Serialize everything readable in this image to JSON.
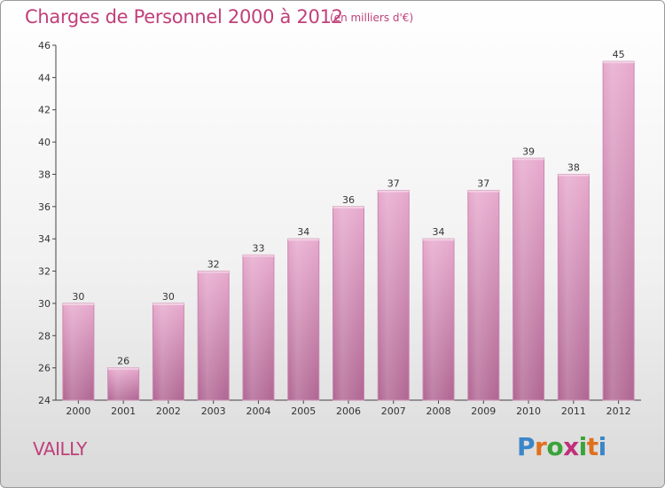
{
  "title": "Charges de Personnel 2000 à 2012",
  "subtitle": "(en milliers d'€)",
  "commune": "VAILLY",
  "logo": {
    "letters": [
      "P",
      "r",
      "o",
      "x",
      "i",
      "t",
      "i"
    ],
    "colors": [
      "#3a86c8",
      "#e0701e",
      "#3aa33a",
      "#c0307a",
      "#3aa33a",
      "#e0701e",
      "#3a86c8"
    ]
  },
  "colors": {
    "title": "#c0407a",
    "bar_light": "#e7a9cd",
    "bar_dark": "#b06592"
  },
  "chart_data": {
    "type": "bar",
    "categories": [
      "2000",
      "2001",
      "2002",
      "2003",
      "2004",
      "2005",
      "2006",
      "2007",
      "2008",
      "2009",
      "2010",
      "2011",
      "2012"
    ],
    "values": [
      30,
      26,
      30,
      32,
      33,
      34,
      36,
      37,
      34,
      37,
      39,
      38,
      45
    ],
    "data_labels": [
      "30",
      "26",
      "30",
      "32",
      "33",
      "34",
      "36",
      "37",
      "34",
      "37",
      "39",
      "38",
      "45"
    ],
    "ylim": [
      24,
      46
    ],
    "yticks": [
      24,
      26,
      28,
      30,
      32,
      34,
      36,
      38,
      40,
      42,
      44,
      46
    ],
    "ytick_labels": [
      "24",
      "26",
      "28",
      "30",
      "32",
      "34",
      "36",
      "38",
      "40",
      "42",
      "44",
      "46"
    ],
    "grid": false
  }
}
